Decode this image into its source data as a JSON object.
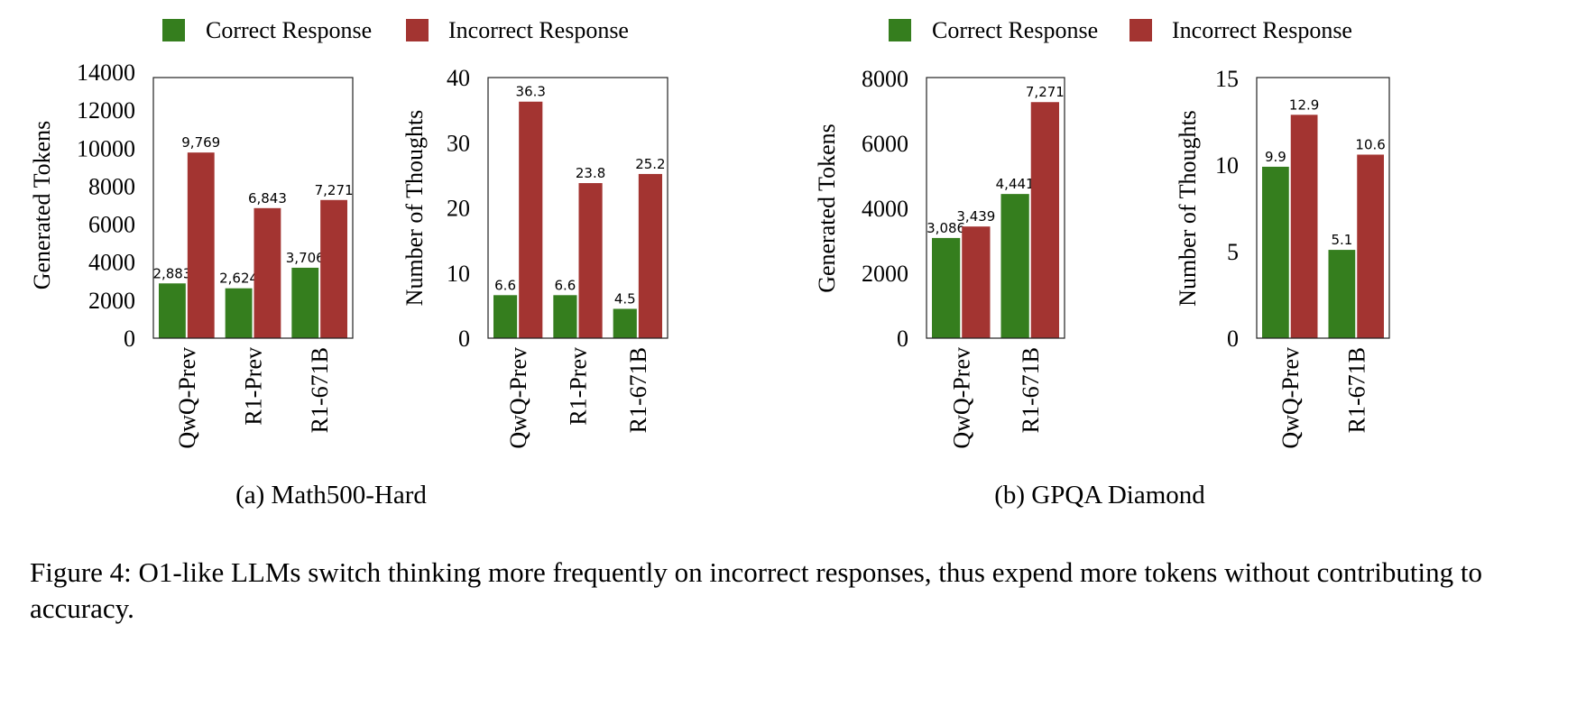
{
  "colors": {
    "correct": "#357e1e",
    "incorrect": "#a33431"
  },
  "legend": {
    "correct": "Correct Response",
    "incorrect": "Incorrect Response"
  },
  "subcaptions": {
    "a": "(a) Math500-Hard",
    "b": "(b) GPQA Diamond"
  },
  "caption": "Figure 4: O1-like LLMs switch thinking more frequently on incorrect responses, thus expend more tokens without contributing to accuracy.",
  "chart_data": [
    {
      "type": "bar",
      "group": "a",
      "ylabel": "Generated Tokens",
      "categories": [
        "QwQ-Prev",
        "R1-Prev",
        "R1-671B"
      ],
      "ylim": [
        0,
        14000
      ],
      "yticks": [
        0,
        2000,
        4000,
        6000,
        8000,
        10000,
        12000,
        14000
      ],
      "series": [
        {
          "name": "Correct Response",
          "values": [
            2883,
            2624,
            3706
          ],
          "labels": [
            "2,883",
            "2,624",
            "3,706"
          ]
        },
        {
          "name": "Incorrect Response",
          "values": [
            9769,
            6843,
            7271
          ],
          "labels": [
            "9,769",
            "6,843",
            "7,271"
          ]
        }
      ]
    },
    {
      "type": "bar",
      "group": "a",
      "ylabel": "Number of Thoughts",
      "categories": [
        "QwQ-Prev",
        "R1-Prev",
        "R1-671B"
      ],
      "ylim": [
        0,
        40
      ],
      "yticks": [
        0,
        10,
        20,
        30,
        40
      ],
      "series": [
        {
          "name": "Correct Response",
          "values": [
            6.6,
            6.6,
            4.5
          ],
          "labels": [
            "6.6",
            "6.6",
            "4.5"
          ]
        },
        {
          "name": "Incorrect Response",
          "values": [
            36.3,
            23.8,
            25.2
          ],
          "labels": [
            "36.3",
            "23.8",
            "25.2"
          ]
        }
      ]
    },
    {
      "type": "bar",
      "group": "b",
      "ylabel": "Generated Tokens",
      "categories": [
        "QwQ-Prev",
        "R1-671B"
      ],
      "ylim": [
        0,
        8000
      ],
      "yticks": [
        0,
        2000,
        4000,
        6000,
        8000
      ],
      "series": [
        {
          "name": "Correct Response",
          "values": [
            3086,
            4441
          ],
          "labels": [
            "3,086",
            "4,441"
          ]
        },
        {
          "name": "Incorrect Response",
          "values": [
            3439,
            7271
          ],
          "labels": [
            "3,439",
            "7,271"
          ]
        }
      ]
    },
    {
      "type": "bar",
      "group": "b",
      "ylabel": "Number of Thoughts",
      "categories": [
        "QwQ-Prev",
        "R1-671B"
      ],
      "ylim": [
        0,
        15
      ],
      "yticks": [
        0,
        5,
        10,
        15
      ],
      "series": [
        {
          "name": "Correct Response",
          "values": [
            9.9,
            5.1
          ],
          "labels": [
            "9.9",
            "5.1"
          ]
        },
        {
          "name": "Incorrect Response",
          "values": [
            12.9,
            10.6
          ],
          "labels": [
            "12.9",
            "10.6"
          ]
        }
      ]
    }
  ]
}
